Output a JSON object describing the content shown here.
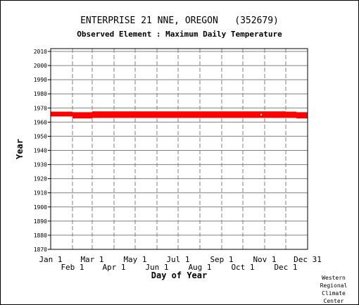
{
  "chart_data": {
    "type": "bar",
    "title": "ENTERPRISE 21 NNE, OREGON   (352679)",
    "subtitle": "Observed Element : Maximum Daily Temperature",
    "xlabel": "Day of Year",
    "ylabel": "Year",
    "ylim": [
      1870,
      2012
    ],
    "yticks": [
      1870,
      1880,
      1890,
      1900,
      1910,
      1920,
      1930,
      1940,
      1950,
      1960,
      1970,
      1980,
      1990,
      2000,
      2010
    ],
    "xlim": [
      1,
      366
    ],
    "month_ticks_top_row": [
      {
        "label": "Jan 1",
        "day": 1
      },
      {
        "label": "Mar 1",
        "day": 60
      },
      {
        "label": "May 1",
        "day": 121
      },
      {
        "label": "Jul 1",
        "day": 182
      },
      {
        "label": "Sep 1",
        "day": 244
      },
      {
        "label": "Nov 1",
        "day": 305
      },
      {
        "label": "Dec 31",
        "day": 366
      }
    ],
    "month_ticks_bottom_row": [
      {
        "label": "Feb 1",
        "day": 32
      },
      {
        "label": "Apr 1",
        "day": 91
      },
      {
        "label": "Jun 1",
        "day": 152
      },
      {
        "label": "Aug 1",
        "day": 213
      },
      {
        "label": "Oct 1",
        "day": 274
      },
      {
        "label": "Dec 1",
        "day": 335
      }
    ],
    "grid": true,
    "series_color": "#ff0000",
    "data_coverage": [
      {
        "day_start": 1,
        "day_end": 32,
        "year_start": 1964.0,
        "year_end": 1967.4
      },
      {
        "day_start": 32,
        "day_end": 60,
        "year_start": 1962.6,
        "year_end": 1967.0
      },
      {
        "day_start": 60,
        "day_end": 335,
        "year_start": 1963.0,
        "year_end": 1967.6
      },
      {
        "day_start": 335,
        "day_end": 350,
        "year_start": 1963.0,
        "year_end": 1967.4
      },
      {
        "day_start": 350,
        "day_end": 366,
        "year_start": 1962.6,
        "year_end": 1967.0
      }
    ],
    "gaps": [
      {
        "day": 300,
        "year": 1965.3
      }
    ],
    "credit_lines": [
      "Western",
      "Regional",
      "Climate",
      "Center"
    ]
  }
}
